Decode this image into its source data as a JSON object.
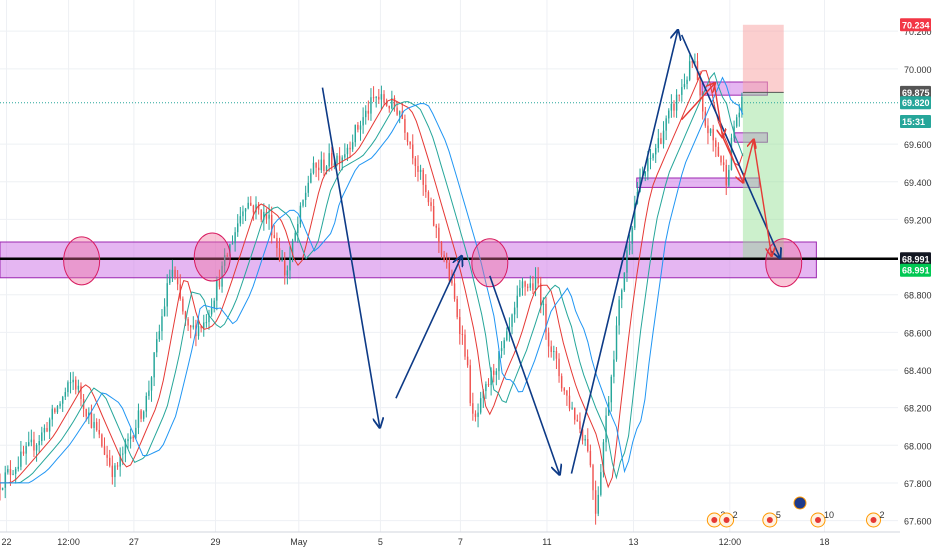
{
  "chart_data": {
    "type": "candlestick",
    "title": "",
    "xlabel": "",
    "ylabel": "",
    "grid": true,
    "ylim": [
      67.55,
      70.27
    ],
    "x_ticks": [
      "22",
      "12:00",
      "27",
      "29",
      "May",
      "5",
      "7",
      "11",
      "13",
      "12:00",
      "18"
    ],
    "y_ticks": [
      "67.600",
      "67.800",
      "68.000",
      "68.200",
      "68.400",
      "68.600",
      "68.800",
      "69.200",
      "69.400",
      "69.600",
      "70.000",
      "70.200"
    ],
    "price_path": [
      [
        0,
        67.8
      ],
      [
        5,
        68.05
      ],
      [
        9,
        68.35
      ],
      [
        12,
        68.05
      ],
      [
        14,
        67.85
      ],
      [
        18,
        68.25
      ],
      [
        21,
        68.95
      ],
      [
        23,
        68.6
      ],
      [
        25,
        68.65
      ],
      [
        27,
        68.9
      ],
      [
        30,
        69.3
      ],
      [
        33,
        69.2
      ],
      [
        35,
        68.9
      ],
      [
        38,
        69.45
      ],
      [
        42,
        69.55
      ],
      [
        46,
        69.85
      ],
      [
        49,
        69.78
      ],
      [
        51,
        69.5
      ],
      [
        55,
        68.9
      ],
      [
        57,
        68.5
      ],
      [
        58,
        68.1
      ],
      [
        60,
        68.35
      ],
      [
        62,
        68.55
      ],
      [
        64,
        68.85
      ],
      [
        66,
        68.85
      ],
      [
        67,
        68.6
      ],
      [
        69,
        68.3
      ],
      [
        72,
        68.0
      ],
      [
        73,
        67.65
      ],
      [
        74,
        68.05
      ],
      [
        76,
        68.8
      ],
      [
        78,
        69.35
      ],
      [
        80,
        69.55
      ],
      [
        83,
        69.85
      ],
      [
        85,
        70.05
      ],
      [
        86,
        69.75
      ],
      [
        88,
        69.55
      ],
      [
        89,
        69.42
      ],
      [
        90,
        69.72
      ],
      [
        91,
        69.82
      ]
    ],
    "moving_averages": [
      {
        "color": "#e53935",
        "lag": 1.3
      },
      {
        "color": "#26a69a",
        "lag": 2.4
      },
      {
        "color": "#2196f3",
        "lag": 3.6
      }
    ],
    "price_labels": [
      {
        "value": "70.234",
        "y": 70.234,
        "bg": "#f23645",
        "fg": "#ffffff"
      },
      {
        "value": "69.875",
        "y": 69.875,
        "bg": "#555555",
        "fg": "#ffffff"
      },
      {
        "value": "69.820",
        "y": 69.82,
        "bg": "#26a69a",
        "fg": "#ffffff"
      },
      {
        "value": "15:31",
        "y": 69.72,
        "bg": "#26a69a",
        "fg": "#ffffff"
      },
      {
        "value": "68.991",
        "y": 68.991,
        "bg": "#131722",
        "fg": "#ffffff"
      },
      {
        "value": "68.991",
        "y": 68.93,
        "bg": "#00c853",
        "fg": "#ffffff"
      }
    ],
    "horizontal_line": {
      "y": 68.991,
      "color": "#000000"
    },
    "dotted_line": {
      "y": 69.82,
      "color": "#26a69a"
    },
    "zones": [
      {
        "y_top": 69.08,
        "y_bot": 68.89,
        "x_start": 0,
        "x_end": 100,
        "color": "#cf7ae8"
      },
      {
        "y_top": 69.93,
        "y_bot": 69.86,
        "x_start": 86,
        "x_end": 94,
        "color": "#cf7ae8"
      },
      {
        "y_top": 69.66,
        "y_bot": 69.61,
        "x_start": 90,
        "x_end": 94,
        "color": "#cf7ae8"
      },
      {
        "y_top": 69.42,
        "y_bot": 69.37,
        "x_start": 78,
        "x_end": 93,
        "color": "#cf7ae8"
      }
    ],
    "position": {
      "entry": 69.875,
      "stop": 70.234,
      "target": 68.991,
      "x_start": 91,
      "x_end": 96
    },
    "circles": [
      {
        "x": 10,
        "y": 68.98
      },
      {
        "x": 26,
        "y": 69.0
      },
      {
        "x": 60,
        "y": 68.97
      },
      {
        "x": 96,
        "y": 68.97
      }
    ],
    "blue_arrows": [
      [
        [
          39.5,
          69.9
        ],
        [
          46.5,
          68.1
        ]
      ],
      [
        [
          48.5,
          68.25
        ],
        [
          56.5,
          69.0
        ]
      ],
      [
        [
          60.0,
          68.9
        ],
        [
          68.5,
          67.85
        ]
      ],
      [
        [
          70.0,
          67.85
        ],
        [
          83.0,
          70.2
        ]
      ],
      [
        [
          83.5,
          70.18
        ],
        [
          95.5,
          69.0
        ]
      ]
    ],
    "red_path": [
      [
        83.5,
        69.73
      ],
      [
        87.5,
        69.92
      ],
      [
        88.5,
        69.64
      ],
      [
        91.0,
        69.4
      ],
      [
        92.3,
        69.62
      ],
      [
        94.5,
        69.01
      ]
    ],
    "event_markers": [
      {
        "x": 87.5,
        "label": "2"
      },
      {
        "x": 89.0,
        "label": "2"
      },
      {
        "x": 94.3,
        "label": "5"
      },
      {
        "x": 100.2,
        "label": "10"
      },
      {
        "x": 107.0,
        "label": "2"
      }
    ]
  }
}
